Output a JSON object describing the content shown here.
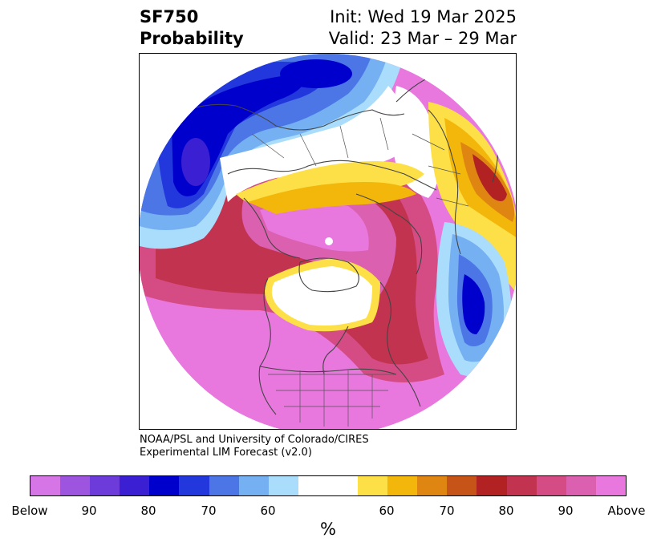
{
  "header": {
    "variable": "SF750",
    "subtitle": "Probability",
    "init": "Init: Wed 19 Mar 2025",
    "valid": "Valid: 23 Mar – 29 Mar"
  },
  "credit": {
    "line1": "NOAA/PSL and University of Colorado/CIRES",
    "line2": "Experimental LIM Forecast (v2.0)"
  },
  "map": {
    "projection": "north-polar-stereographic",
    "regions": [
      "north-america",
      "europe",
      "asia",
      "arctic"
    ]
  },
  "colorbar": {
    "unit": "%",
    "colors": [
      "#d675e6",
      "#9d55e0",
      "#6d3bd9",
      "#3a1fd3",
      "#0000cd",
      "#2238dc",
      "#4c76e6",
      "#74b0f2",
      "#aadcfb",
      "#ffffff",
      "#fde047",
      "#f3b60a",
      "#df8512",
      "#c65318",
      "#b22222",
      "#c23350",
      "#d54c85",
      "#dc60b0",
      "#e878de"
    ],
    "ticks": [
      "Below",
      "90",
      "80",
      "70",
      "60",
      "60",
      "70",
      "80",
      "90",
      "Above"
    ]
  }
}
